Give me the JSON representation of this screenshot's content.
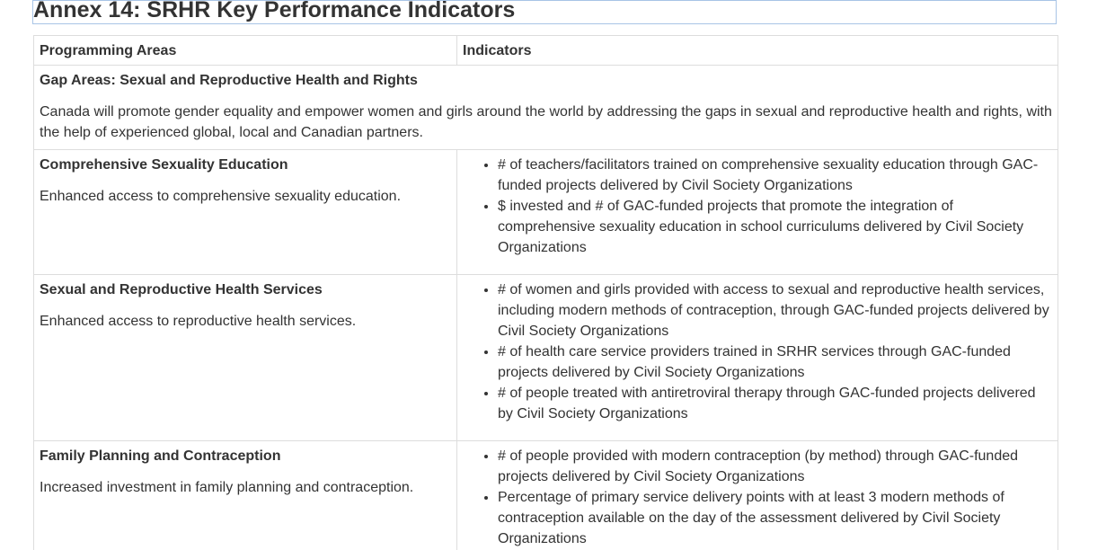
{
  "title": "Annex 14: SRHR Key Performance Indicators",
  "table": {
    "headers": {
      "programming_areas": "Programming Areas",
      "indicators": "Indicators"
    },
    "gap": {
      "heading": "Gap Areas: Sexual and Reproductive Health and Rights",
      "description": "Canada will promote gender equality and empower women and girls around the world by addressing the gaps in sexual and reproductive health and rights, with the help of experienced global, local and Canadian partners."
    },
    "rows": [
      {
        "title": "Comprehensive Sexuality Education",
        "description": "Enhanced access to comprehensive sexuality education.",
        "indicators": [
          "# of teachers/facilitators trained on comprehensive sexuality education through GAC-funded projects delivered by Civil Society Organizations",
          "$ invested and # of GAC-funded projects that promote the integration of comprehensive sexuality education in school curriculums delivered by Civil Society Organizations"
        ]
      },
      {
        "title": "Sexual and Reproductive Health Services",
        "description": "Enhanced access to reproductive health services.",
        "indicators": [
          "# of women and girls provided with access to sexual and reproductive health services, including modern methods of contraception, through GAC-funded projects delivered by Civil Society Organizations",
          "# of health care service providers trained in SRHR services through GAC-funded projects delivered by Civil Society Organizations",
          "# of people treated with antiretroviral therapy through GAC-funded projects delivered by Civil Society Organizations"
        ]
      },
      {
        "title": "Family Planning and Contraception",
        "description": "Increased investment in family planning and contraception.",
        "indicators": [
          "# of people provided with modern contraception (by method) through GAC-funded projects delivered by Civil Society Organizations",
          "Percentage of primary service delivery points with at least 3 modern methods of contraception available on the day of the assessment delivered by Civil Society Organizations"
        ]
      }
    ]
  }
}
